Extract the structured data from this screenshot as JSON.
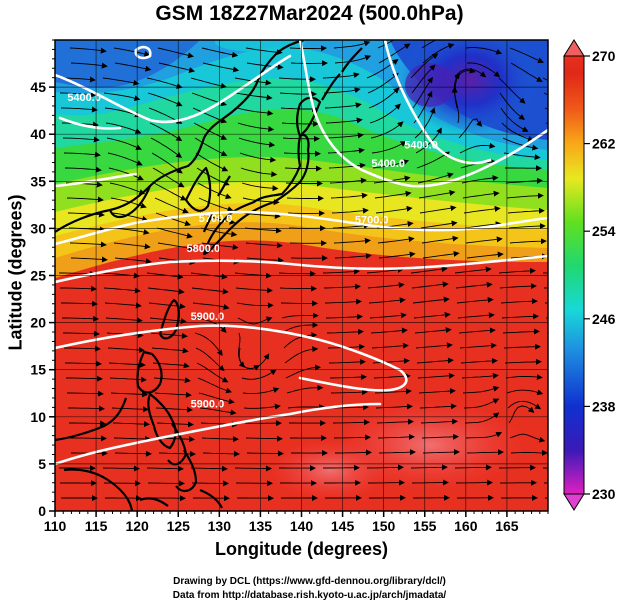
{
  "title": "GSM 18Z27Mar2024 (500.0hPa)",
  "axes": {
    "xlabel": "Longitude (degrees)",
    "ylabel": "Latitude  (degrees)",
    "x_range": [
      110,
      170
    ],
    "y_range": [
      0,
      50
    ],
    "x_ticks": [
      110,
      115,
      120,
      125,
      130,
      135,
      140,
      145,
      150,
      155,
      160,
      165
    ],
    "y_ticks": [
      0,
      5,
      10,
      15,
      20,
      25,
      30,
      35,
      40,
      45
    ],
    "grid": true
  },
  "colorbar": {
    "min": 230,
    "max": 270,
    "tick_labels": [
      "270",
      "262",
      "254",
      "246",
      "238",
      "230"
    ],
    "tick_values": [
      270,
      262,
      254,
      246,
      238,
      230
    ],
    "colors": [
      "#e020c0",
      "#3a1ab8",
      "#1030d0",
      "#1e90e0",
      "#18d8d8",
      "#20d870",
      "#60e020",
      "#e8e820",
      "#f8a818",
      "#f05818",
      "#e02818",
      "#f06868"
    ]
  },
  "contour_labels": [
    {
      "text": "5400.0",
      "lon": 111.5,
      "lat": 43.5
    },
    {
      "text": "5400.0",
      "lon": 152.5,
      "lat": 38.5
    },
    {
      "text": "5400.0",
      "lon": 148.5,
      "lat": 36.5
    },
    {
      "text": "5700.0",
      "lon": 127.5,
      "lat": 30.7
    },
    {
      "text": "5700.0",
      "lon": 146.5,
      "lat": 30.5
    },
    {
      "text": "5800.0",
      "lon": 126.0,
      "lat": 27.5
    },
    {
      "text": "5900.0",
      "lon": 126.5,
      "lat": 20.3
    },
    {
      "text": "5900.0",
      "lon": 126.5,
      "lat": 11.0
    }
  ],
  "credits": [
    "Drawing by DCL (https://www.gfd-dennou.org/library/dcl/)",
    "Data from http://database.rish.kyoto-u.ac.jp/arch/jmadata/"
  ]
}
